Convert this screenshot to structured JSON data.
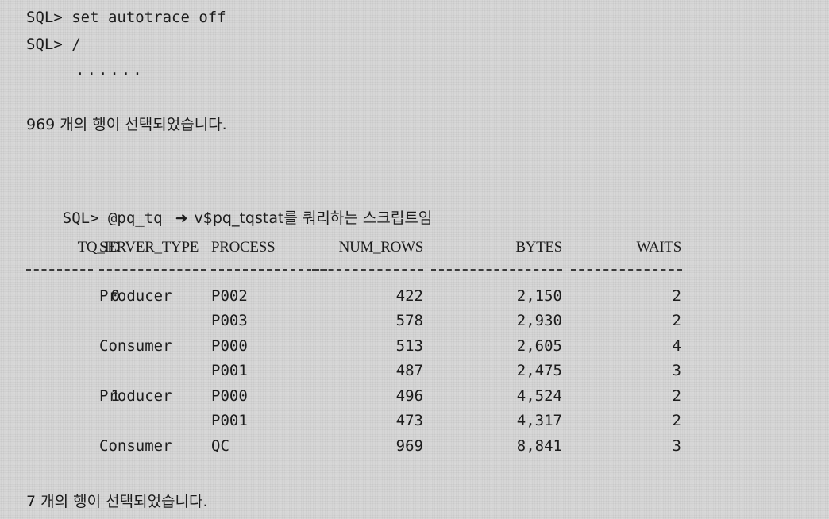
{
  "console": {
    "prompt1": "SQL> set autotrace off",
    "prompt2": "SQL> /",
    "dots": "......",
    "result1": "969 개의 행이 선택되었습니다.",
    "prompt3_cmd": "SQL> @pq_tq",
    "arrow_icon": "right-arrow-icon",
    "prompt3_desc": "v$pq_tqstat를 쿼리하는 스크립트임",
    "result2": "7 개의 행이 선택되었습니다."
  },
  "table": {
    "headers": [
      "TQ_ID",
      "SERVER_TYPE",
      "PROCESS",
      "NUM_ROWS",
      "BYTES",
      "WAITS"
    ],
    "rows": [
      [
        "0",
        "Producer",
        "P002",
        "422",
        "2,150",
        "2"
      ],
      [
        "",
        "",
        "P003",
        "578",
        "2,930",
        "2"
      ],
      [
        "",
        "Consumer",
        "P000",
        "513",
        "2,605",
        "4"
      ],
      [
        "",
        "",
        "P001",
        "487",
        "2,475",
        "3"
      ],
      [
        "1",
        "Producer",
        "P000",
        "496",
        "4,524",
        "2"
      ],
      [
        "",
        "",
        "P001",
        "473",
        "4,317",
        "2"
      ],
      [
        "",
        "Consumer",
        "QC",
        "969",
        "8,841",
        "3"
      ]
    ]
  }
}
